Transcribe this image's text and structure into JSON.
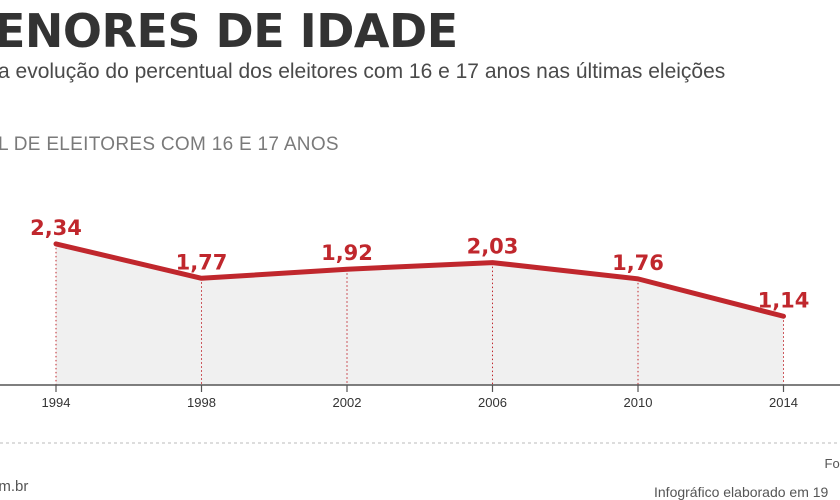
{
  "header": {
    "title": "ENORES DE IDADE",
    "subtitle": "a evolução do percentual dos eleitores com 16 e 17 anos nas últimas eleições"
  },
  "footer": {
    "source": "For",
    "site": "om.br",
    "credit": "Infográfico elaborado em 19"
  },
  "chart_data": {
    "type": "area",
    "title": "ENORES DE IDADE",
    "xlabel": "",
    "ylabel": "L DE ELEITORES COM 16 E 17 ANOS",
    "categories": [
      "1994",
      "1998",
      "2002",
      "2006",
      "2010",
      "2014"
    ],
    "values": [
      2.34,
      1.77,
      1.92,
      2.03,
      1.76,
      1.14
    ],
    "value_labels": [
      "2,34",
      "1,77",
      "1,92",
      "2,03",
      "1,76",
      "1,14"
    ],
    "ylim": [
      0,
      2.34
    ],
    "grid": false,
    "legend": "none",
    "line_color": "#c0272d",
    "fill_color": "#f0f0f0",
    "label_color": "#c0272d"
  }
}
